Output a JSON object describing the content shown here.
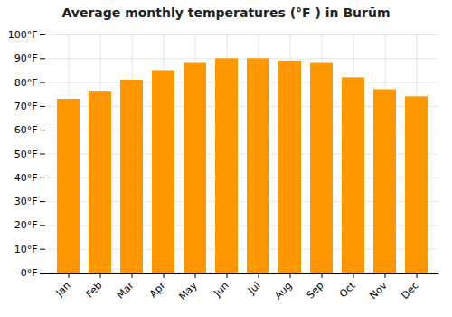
{
  "chart_data": {
    "type": "bar",
    "title": "Average monthly temperatures (°F ) in Burūm",
    "categories": [
      "Jan",
      "Feb",
      "Mar",
      "Apr",
      "May",
      "Jun",
      "Jul",
      "Aug",
      "Sep",
      "Oct",
      "Nov",
      "Dec"
    ],
    "values": [
      73,
      76,
      81,
      85,
      88,
      90,
      90,
      89,
      88,
      82,
      77,
      74
    ],
    "color": "#FF9800",
    "ylim": [
      0,
      100
    ],
    "yticks": [
      {
        "value": 0,
        "label": "0°F"
      },
      {
        "value": 10,
        "label": "10°F"
      },
      {
        "value": 20,
        "label": "20°F"
      },
      {
        "value": 30,
        "label": "30°F"
      },
      {
        "value": 40,
        "label": "40°F"
      },
      {
        "value": 50,
        "label": "50°F"
      },
      {
        "value": 60,
        "label": "60°F"
      },
      {
        "value": 70,
        "label": "70°F"
      },
      {
        "value": 80,
        "label": "80°F"
      },
      {
        "value": 90,
        "label": "90°F"
      },
      {
        "value": 100,
        "label": "100°F"
      }
    ],
    "grid": true
  }
}
